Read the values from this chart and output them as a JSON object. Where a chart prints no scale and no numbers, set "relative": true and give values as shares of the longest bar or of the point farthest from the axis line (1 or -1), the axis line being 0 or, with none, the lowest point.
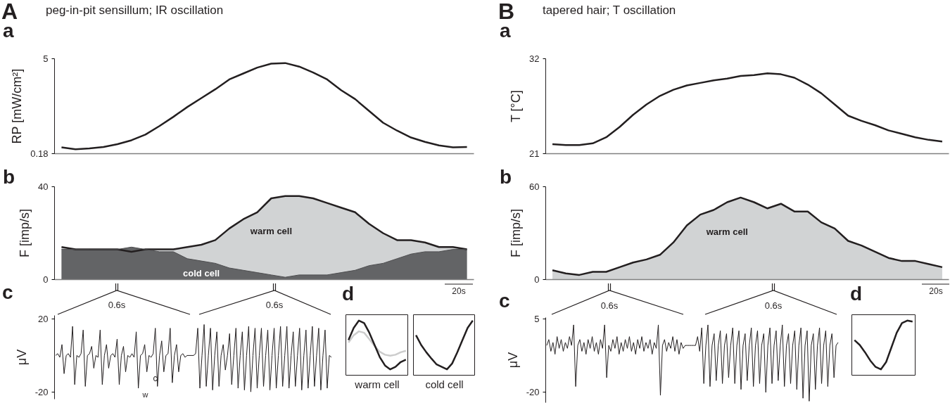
{
  "chart_data": [
    {
      "type": "line",
      "title": "peg-in-pit sensillum; IR oscillation",
      "ylabel": "RP [mW/cm²]",
      "annotations": [
        "A",
        "a"
      ],
      "color": "#231f20",
      "categories": [
        null,
        null,
        null,
        null,
        null,
        null,
        null,
        null,
        null,
        null,
        null,
        null,
        null,
        null,
        null,
        null,
        null,
        null,
        null,
        null,
        null,
        null,
        null,
        null,
        null,
        null,
        null,
        null,
        null,
        null
      ],
      "values": [
        0.5,
        0.4,
        0.45,
        0.52,
        0.66,
        0.86,
        1.15,
        1.58,
        2.05,
        2.55,
        3.0,
        3.45,
        3.95,
        4.25,
        4.55,
        4.75,
        4.78,
        4.6,
        4.3,
        3.95,
        3.4,
        2.95,
        2.35,
        1.75,
        1.35,
        1.0,
        0.78,
        0.6,
        0.5,
        0.52
      ],
      "ylim": [
        0.18,
        5
      ],
      "yticks": [
        0.18,
        5
      ],
      "tick_labels": "y"
    },
    {
      "type": "area",
      "ylabel": "F [imp/s]",
      "annotations": [
        "b",
        "20s"
      ],
      "categories": [
        null,
        null,
        null,
        null,
        null,
        null,
        null,
        null,
        null,
        null,
        null,
        null,
        null,
        null,
        null,
        null,
        null,
        null,
        null,
        null,
        null,
        null,
        null,
        null,
        null,
        null,
        null,
        null,
        null,
        null
      ],
      "series": [
        {
          "name": "warm cell",
          "color": "#d1d3d4",
          "values": [
            14,
            13,
            13,
            13,
            13,
            12,
            13,
            13,
            13,
            14,
            15,
            17,
            22,
            26,
            29,
            35,
            36,
            36,
            35,
            33,
            31,
            29,
            24,
            20,
            17,
            17,
            16,
            14,
            14,
            13
          ]
        },
        {
          "name": "cold cell",
          "color": "#636466",
          "values": [
            13,
            13,
            13,
            13,
            13,
            14,
            13,
            12,
            12,
            9,
            8,
            7,
            5,
            4,
            3,
            2,
            1,
            2,
            2,
            2,
            3,
            4,
            6,
            7,
            9,
            11,
            12,
            12,
            13,
            13
          ]
        }
      ],
      "ylim": [
        0,
        40
      ],
      "yticks": [
        0,
        40
      ],
      "tick_labels": "y"
    },
    {
      "type": "line",
      "ylabel": "μV",
      "annotations": [
        "c",
        "0.6s",
        "0.6s",
        "w",
        "c"
      ],
      "color": "#231f20",
      "categories": [
        null,
        null,
        null,
        null,
        null,
        null,
        null,
        null,
        null,
        null,
        null,
        null,
        null,
        null,
        null,
        null,
        null,
        null,
        null,
        null,
        null,
        null,
        null,
        null,
        null,
        null,
        null,
        null,
        null,
        null,
        null,
        null,
        null,
        null,
        null,
        null,
        null,
        null,
        null,
        null,
        null,
        null,
        null,
        null,
        null,
        null,
        null,
        null,
        null,
        null,
        null,
        null,
        null,
        null,
        null,
        null,
        null,
        null,
        null,
        null,
        null,
        null,
        null,
        null,
        null,
        null,
        null,
        null,
        null,
        null,
        null,
        null,
        null,
        null,
        null,
        null,
        null,
        null,
        null,
        null,
        null,
        null,
        null,
        null,
        null,
        null,
        null,
        null,
        null,
        null,
        null,
        null,
        null,
        null,
        null,
        null,
        null,
        null,
        null,
        null,
        null,
        null,
        null,
        null,
        null,
        null,
        null,
        null,
        null,
        null,
        null,
        null,
        null,
        null,
        null,
        null,
        null,
        null,
        null,
        null,
        null,
        null,
        null,
        null,
        null,
        null,
        null,
        null,
        null,
        null,
        null
      ],
      "values": [
        0,
        1,
        -1,
        6,
        -10,
        0,
        1,
        -1,
        16,
        -16,
        0,
        -1,
        1,
        14,
        -17,
        0,
        1,
        5,
        -7,
        0,
        -1,
        14,
        -16,
        0,
        6,
        -7,
        0,
        1,
        -1,
        9,
        -16,
        0,
        5,
        -9,
        0,
        -1,
        1,
        -1,
        13,
        -18,
        0,
        1,
        6,
        -9,
        0,
        -1,
        1,
        15,
        -17,
        0,
        8,
        -9,
        0,
        1,
        15,
        -15,
        0,
        6,
        -9,
        0,
        1,
        -1,
        0,
        0,
        0,
        0,
        1,
        15,
        -18,
        0,
        17,
        -17,
        0,
        15,
        -19,
        0,
        13,
        -17,
        0,
        6,
        -8,
        0,
        12,
        -16,
        0,
        15,
        -18,
        0,
        13,
        -19,
        0,
        16,
        -20,
        0,
        15,
        -18,
        0,
        15,
        -17,
        0,
        14,
        -19,
        0,
        15,
        -18,
        0,
        16,
        -17,
        0,
        16,
        -18,
        0,
        13,
        -17,
        0,
        15,
        -19,
        0,
        14,
        -18,
        0,
        16,
        -17,
        0,
        15,
        -19,
        0,
        14,
        -18,
        0,
        -1
      ],
      "ylim": [
        -24,
        22
      ],
      "yticks": [
        -20,
        20
      ],
      "tick_labels": "y"
    },
    {
      "type": "line",
      "relative": true,
      "xlabel": "warm cell",
      "annotations": [
        "d"
      ],
      "categories": [
        null,
        null,
        null,
        null,
        null,
        null,
        null,
        null,
        null,
        null,
        null,
        null
      ],
      "series": [
        {
          "color": "#cccccc",
          "values": [
            0.55,
            0.7,
            0.78,
            0.75,
            0.62,
            0.48,
            0.36,
            0.3,
            0.28,
            0.3,
            0.35,
            0.38
          ]
        },
        {
          "color": "#231f20",
          "values": [
            0.6,
            0.85,
            1,
            0.95,
            0.75,
            0.5,
            0.25,
            0.08,
            0,
            0.05,
            0.15,
            0.2
          ]
        }
      ]
    },
    {
      "type": "line",
      "relative": true,
      "xlabel": "cold cell",
      "color": "#231f20",
      "categories": [
        null,
        null,
        null,
        null,
        null,
        null,
        null,
        null,
        null,
        null,
        null,
        null
      ],
      "values": [
        0.7,
        0.5,
        0.35,
        0.22,
        0.1,
        0.05,
        0,
        0.12,
        0.35,
        0.6,
        0.85,
        1
      ]
    },
    {
      "type": "line",
      "title": "tapered hair; T oscillation",
      "ylabel": "T [°C]",
      "annotations": [
        "B",
        "a"
      ],
      "color": "#231f20",
      "categories": [
        null,
        null,
        null,
        null,
        null,
        null,
        null,
        null,
        null,
        null,
        null,
        null,
        null,
        null,
        null,
        null,
        null,
        null,
        null,
        null,
        null,
        null,
        null,
        null,
        null,
        null,
        null,
        null,
        null,
        null
      ],
      "values": [
        22.1,
        22.0,
        22.0,
        22.2,
        22.9,
        24.1,
        25.5,
        26.7,
        27.7,
        28.4,
        28.9,
        29.2,
        29.5,
        29.7,
        30.0,
        30.1,
        30.3,
        30.2,
        29.8,
        29.0,
        28.0,
        26.7,
        25.4,
        24.8,
        24.3,
        23.7,
        23.3,
        22.9,
        22.6,
        22.4
      ],
      "ylim": [
        21,
        32
      ],
      "yticks": [
        21,
        32
      ],
      "tick_labels": "y"
    },
    {
      "type": "area",
      "ylabel": "F [imp/s]",
      "annotations": [
        "b",
        "20s"
      ],
      "categories": [
        null,
        null,
        null,
        null,
        null,
        null,
        null,
        null,
        null,
        null,
        null,
        null,
        null,
        null,
        null,
        null,
        null,
        null,
        null,
        null,
        null,
        null,
        null,
        null,
        null,
        null,
        null,
        null,
        null,
        null
      ],
      "series": [
        {
          "name": "warm cell",
          "color": "#d1d3d4",
          "values": [
            6,
            4,
            3,
            5,
            5,
            8,
            11,
            13,
            16,
            24,
            35,
            42,
            45,
            50,
            53,
            50,
            46,
            49,
            44,
            44,
            37,
            33,
            25,
            22,
            18,
            14,
            12,
            12,
            10,
            8
          ]
        }
      ],
      "ylim": [
        0,
        60
      ],
      "yticks": [
        0,
        60
      ],
      "tick_labels": "y"
    },
    {
      "type": "line",
      "ylabel": "μV",
      "annotations": [
        "c",
        "0.6s",
        "0.6s"
      ],
      "color": "#231f20",
      "categories": [
        null,
        null,
        null,
        null,
        null,
        null,
        null,
        null,
        null,
        null,
        null,
        null,
        null,
        null,
        null,
        null,
        null,
        null,
        null,
        null,
        null,
        null,
        null,
        null,
        null,
        null,
        null,
        null,
        null,
        null,
        null,
        null,
        null,
        null,
        null,
        null,
        null,
        null,
        null,
        null,
        null,
        null,
        null,
        null,
        null,
        null,
        null,
        null,
        null,
        null,
        null,
        null,
        null,
        null,
        null,
        null,
        null,
        null,
        null,
        null,
        null,
        null,
        null,
        null,
        null,
        null,
        null,
        null,
        null,
        null,
        null,
        null,
        null,
        null,
        null,
        null,
        null,
        null,
        null,
        null,
        null,
        null,
        null,
        null,
        null,
        null,
        null,
        null,
        null,
        null,
        null,
        null,
        null,
        null,
        null,
        null,
        null,
        null,
        null,
        null,
        null,
        null,
        null,
        null,
        null,
        null,
        null,
        null,
        null,
        null,
        null,
        null,
        null,
        null,
        null,
        null,
        null,
        null,
        null,
        null,
        null,
        null,
        null,
        null,
        null,
        null,
        null,
        null,
        null,
        null,
        null,
        null,
        null,
        null,
        null,
        null,
        null,
        null,
        null,
        null,
        null,
        null
      ],
      "values": [
        -4,
        -2,
        -6,
        -3,
        -7,
        -1,
        -5,
        -2,
        -6,
        -3,
        -5,
        -1,
        -4,
        3,
        -18,
        -4,
        -2,
        -6,
        -3,
        -7,
        -2,
        -5,
        -1,
        -6,
        -3,
        -7,
        -2,
        -5,
        3,
        -15,
        -4,
        -6,
        -2,
        -5,
        -1,
        -7,
        -3,
        -6,
        -2,
        -5,
        -1,
        -6,
        -3,
        -7,
        -2,
        -5,
        -1,
        -6,
        -3,
        -5,
        -2,
        -7,
        -3,
        -5,
        3,
        -21,
        -4,
        -2,
        -6,
        -3,
        -5,
        -1,
        -6,
        -2,
        -7,
        -3,
        -5,
        -4,
        -4,
        -4,
        -4,
        -4,
        -4,
        -1,
        -6,
        2,
        -17,
        -4,
        3,
        -18,
        -4,
        0,
        -16,
        -4,
        1,
        -17,
        -4,
        0,
        -15,
        -4,
        2,
        -17,
        -4,
        1,
        -19,
        -4,
        0,
        -16,
        -4,
        2,
        -18,
        -4,
        1,
        -17,
        -4,
        0,
        -20,
        -4,
        2,
        -17,
        -4,
        1,
        -16,
        -4,
        3,
        -18,
        -4,
        0,
        -17,
        -4,
        1,
        -19,
        -4,
        2,
        -22,
        -4,
        1,
        -23,
        -4,
        0,
        -19,
        -4,
        2,
        -17,
        -4,
        1,
        -18,
        -4,
        0,
        -15,
        -4,
        -3
      ],
      "ylim": [
        -23.5,
        5.5
      ],
      "yticks": [
        -20,
        5
      ],
      "tick_labels": "y"
    },
    {
      "type": "line",
      "relative": true,
      "annotations": [
        "d"
      ],
      "color": "#231f20",
      "categories": [
        null,
        null,
        null,
        null,
        null,
        null,
        null,
        null,
        null,
        null,
        null,
        null
      ],
      "values": [
        0.6,
        0.5,
        0.35,
        0.18,
        0.05,
        0,
        0.15,
        0.45,
        0.75,
        0.95,
        1,
        0.98
      ]
    }
  ]
}
